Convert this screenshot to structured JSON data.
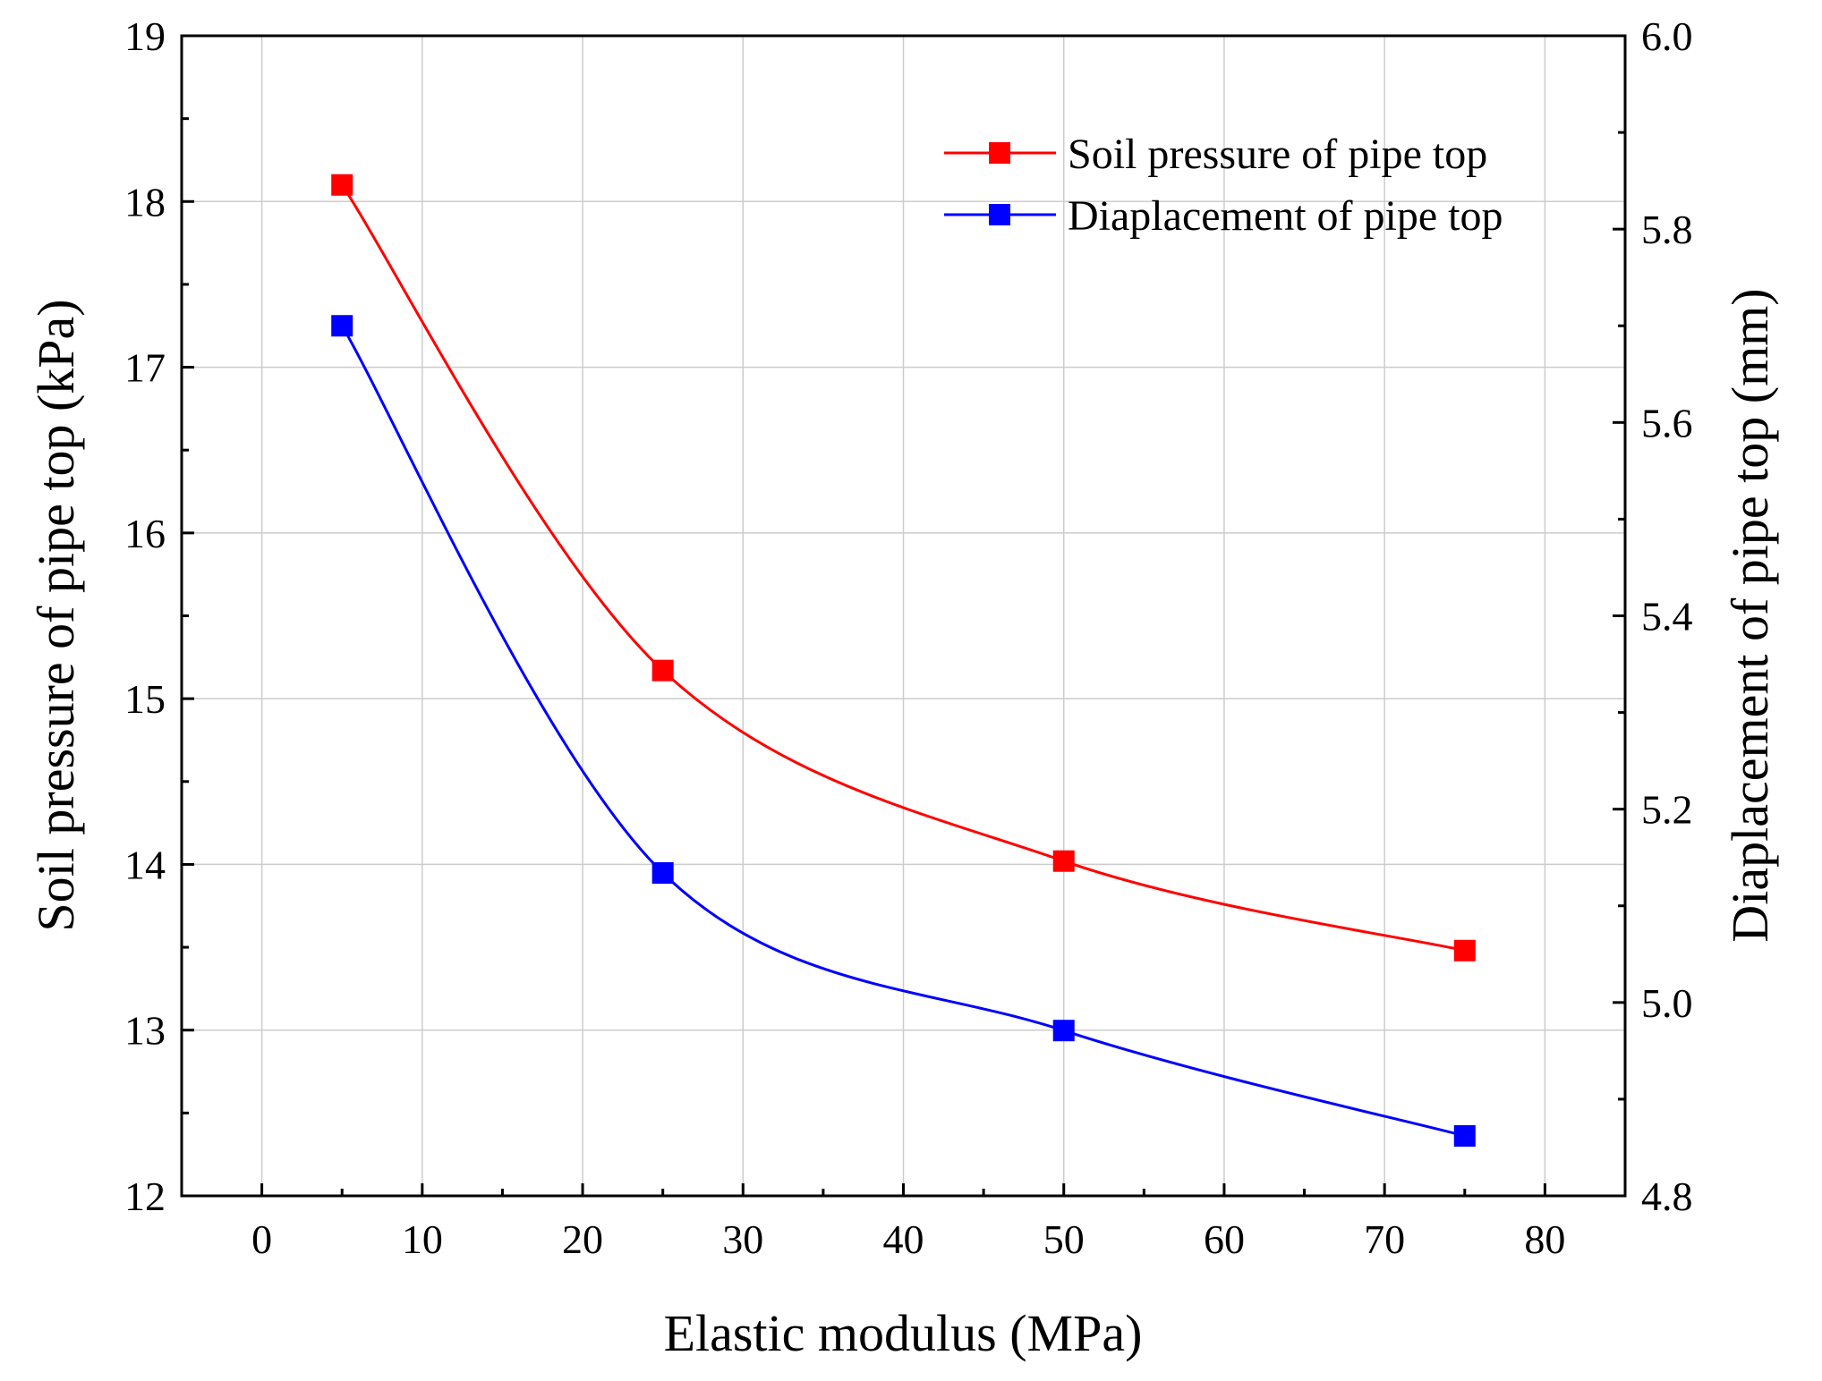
{
  "chart_data": {
    "type": "line",
    "title": "",
    "xlabel": "Elastic modulus (MPa)",
    "ylabel": "Soil pressure of pipe top (kPa)",
    "y2label": "Diaplacement of pipe top (mm)",
    "xlim": [
      -5,
      85
    ],
    "ylim": [
      12,
      19
    ],
    "y2lim": [
      4.8,
      6.0
    ],
    "xticks": [
      0,
      10,
      20,
      30,
      40,
      50,
      60,
      70,
      80
    ],
    "yticks": [
      12,
      13,
      14,
      15,
      16,
      17,
      18,
      19
    ],
    "y2ticks": [
      4.8,
      5.0,
      5.2,
      5.4,
      5.6,
      5.8,
      6.0
    ],
    "ytick_labels": [
      "12",
      "13",
      "14",
      "15",
      "16",
      "17",
      "18",
      "19"
    ],
    "y2tick_labels": [
      "4.8",
      "5.0",
      "5.2",
      "5.4",
      "5.6",
      "5.8",
      "6.0"
    ],
    "grid": true,
    "legend_position": "top-right",
    "x": [
      5,
      25,
      50,
      75
    ],
    "series": [
      {
        "name": "Soil pressure of pipe top",
        "axis": "left",
        "color": "#ff0000",
        "marker": "square",
        "values": [
          18.1,
          15.17,
          14.02,
          13.48
        ]
      },
      {
        "name": "Diaplacement of pipe top",
        "axis": "right",
        "color": "#0000ff",
        "marker": "square",
        "values": [
          5.7,
          5.134,
          4.971,
          4.862
        ]
      }
    ]
  }
}
